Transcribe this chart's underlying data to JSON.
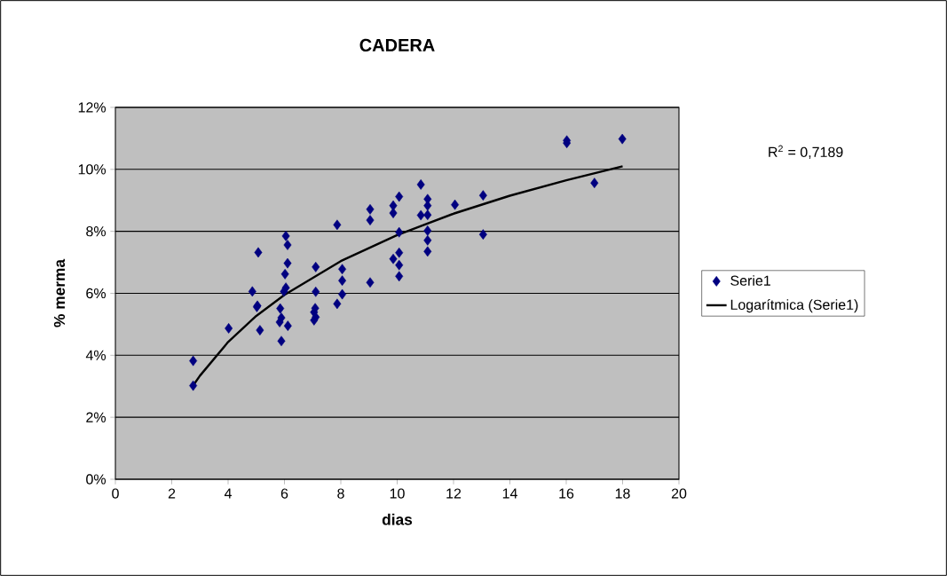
{
  "chart_data": {
    "type": "scatter",
    "title": "CADERA",
    "xlabel": "dias",
    "ylabel": "% merma",
    "xlim": [
      0,
      20
    ],
    "xticks": [
      0,
      2,
      4,
      6,
      8,
      10,
      12,
      14,
      16,
      18,
      20
    ],
    "ylim": [
      0,
      12
    ],
    "yticks": [
      {
        "value": 0,
        "label": "0%"
      },
      {
        "value": 2,
        "label": "2%"
      },
      {
        "value": 4,
        "label": "4%"
      },
      {
        "value": 6,
        "label": "6%"
      },
      {
        "value": 8,
        "label": "8%"
      },
      {
        "value": 10,
        "label": "10%"
      },
      {
        "value": 12,
        "label": "12%"
      }
    ],
    "grid": "y",
    "legend": "right",
    "annotations": [
      "R$^{2}$ = 0,7189"
    ],
    "series": [
      {
        "name": "Serie1",
        "color": "#000080",
        "marker": "diamond",
        "x": [
          2.76,
          2.76,
          4.02,
          4.86,
          5.02,
          5.04,
          5.07,
          5.13,
          5.85,
          5.89,
          5.83,
          6.12,
          5.89,
          6.02,
          6.11,
          6.11,
          6.05,
          6.05,
          5.98,
          7.11,
          7.11,
          7.09,
          7.05,
          7.11,
          7.05,
          8.05,
          8.05,
          8.05,
          7.87,
          7.87,
          9.04,
          9.04,
          9.04,
          9.86,
          9.86,
          9.86,
          10.07,
          10.07,
          10.07,
          10.07,
          10.07,
          10.84,
          10.84,
          11.08,
          11.08,
          11.08,
          11.08,
          11.08,
          11.08,
          12.05,
          13.05,
          13.05,
          16.02,
          16.02,
          17.0,
          17.99
        ],
        "values": [
          3.82,
          3.02,
          4.87,
          6.06,
          5.56,
          5.6,
          7.32,
          4.81,
          5.51,
          5.21,
          5.07,
          4.95,
          4.46,
          6.62,
          6.97,
          7.56,
          7.85,
          6.18,
          6.06,
          6.85,
          6.05,
          5.52,
          5.39,
          5.23,
          5.13,
          6.78,
          6.41,
          5.97,
          5.66,
          8.21,
          8.71,
          8.36,
          6.35,
          8.83,
          8.59,
          7.11,
          9.12,
          7.97,
          7.31,
          6.91,
          6.55,
          9.51,
          8.52,
          9.04,
          8.83,
          8.53,
          8.02,
          7.71,
          7.35,
          8.86,
          9.16,
          7.9,
          10.93,
          10.85,
          9.56,
          10.98
        ]
      },
      {
        "name": "Logarítmica (Serie1)",
        "type": "line",
        "color": "#000000",
        "line_style": "solid",
        "x": [
          2.74,
          3,
          4,
          5,
          6,
          8,
          10,
          12,
          14,
          16,
          18
        ],
        "values": [
          3.0,
          3.34,
          4.43,
          5.27,
          5.95,
          7.04,
          7.88,
          8.57,
          9.15,
          9.65,
          10.1
        ]
      }
    ]
  }
}
